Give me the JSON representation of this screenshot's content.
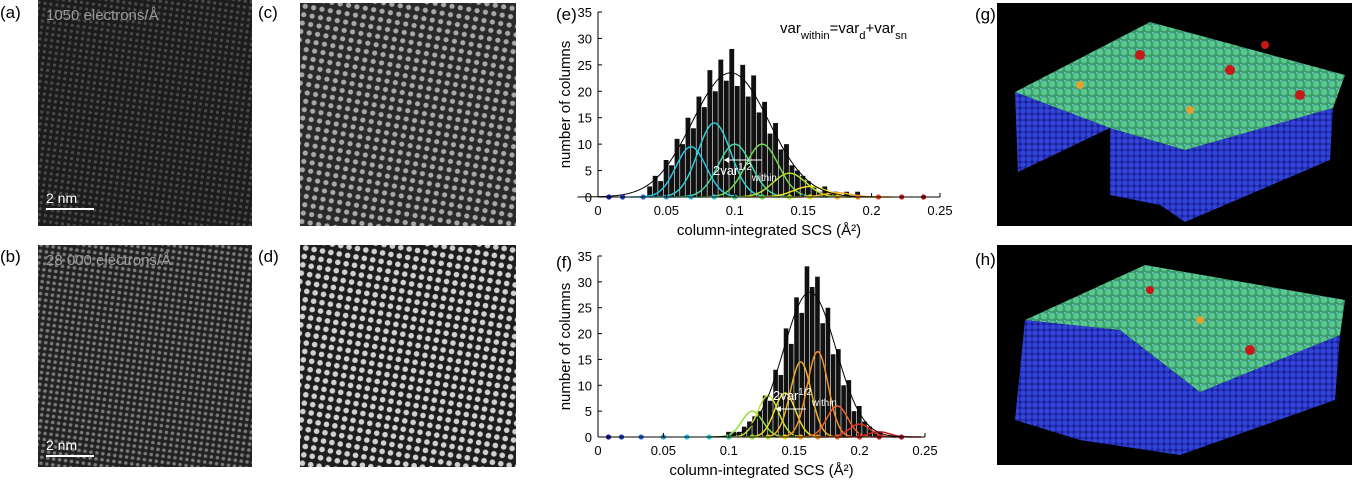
{
  "images": [
    {
      "label": "(a)",
      "caption": "1050 electrons/Å",
      "scale_bar": "2 nm"
    },
    {
      "label": "(b)",
      "caption": "28 000 electrons/Å",
      "scale_bar": "2 nm"
    },
    {
      "label": "(c)"
    },
    {
      "label": "(d)"
    },
    {
      "label": "(g)"
    },
    {
      "label": "(h)"
    }
  ],
  "chart_data": [
    {
      "type": "histogram",
      "label": "(e)",
      "xlabel": "column-integrated SCS (Å²)",
      "ylabel": "number of columns",
      "annotation": [
        "var",
        "within",
        "=var",
        "d",
        "+var",
        "sn"
      ],
      "width_label": [
        "2var",
        "1/2",
        "within"
      ],
      "xlim": [
        0,
        0.25
      ],
      "xticks": [
        0,
        0.05,
        0.1,
        0.15,
        0.2,
        0.25
      ],
      "ylim": [
        0,
        35
      ],
      "yticks": [
        0,
        5,
        10,
        15,
        20,
        25,
        30,
        35
      ],
      "bins": [
        0.036,
        0.04,
        0.044,
        0.048,
        0.052,
        0.056,
        0.06,
        0.064,
        0.068,
        0.072,
        0.076,
        0.08,
        0.084,
        0.088,
        0.092,
        0.096,
        0.1,
        0.104,
        0.108,
        0.112,
        0.116,
        0.12,
        0.124,
        0.128,
        0.132,
        0.136,
        0.14,
        0.144,
        0.148,
        0.152,
        0.156,
        0.16,
        0.164,
        0.168,
        0.172,
        0.176,
        0.18,
        0.184,
        0.188,
        0.192,
        0.196
      ],
      "values": [
        2,
        4,
        3,
        7,
        6,
        11,
        10,
        15,
        13,
        19,
        17,
        24,
        20,
        26,
        22,
        28,
        21,
        25,
        19,
        23,
        16,
        18,
        12,
        14,
        9,
        10,
        6,
        5,
        4,
        3,
        2,
        1,
        2,
        1,
        1,
        0,
        1,
        0,
        1,
        0
      ],
      "bar_color": "#111111",
      "fit": {
        "mean": 0.097,
        "peak": 23.5,
        "sigma": 0.028,
        "color": "#000000"
      },
      "components": [
        {
          "mean": 0.068,
          "peak": 9.5,
          "sigma": 0.011,
          "color": "#22c8e0"
        },
        {
          "mean": 0.085,
          "peak": 14,
          "sigma": 0.012,
          "color": "#30d0d8"
        },
        {
          "mean": 0.1,
          "peak": 10,
          "sigma": 0.012,
          "color": "#40d8a0"
        },
        {
          "mean": 0.12,
          "peak": 10,
          "sigma": 0.012,
          "color": "#70d850"
        },
        {
          "mean": 0.14,
          "peak": 4.5,
          "sigma": 0.012,
          "color": "#b0e030"
        },
        {
          "mean": 0.155,
          "peak": 2,
          "sigma": 0.012,
          "color": "#e8e020"
        },
        {
          "mean": 0.175,
          "peak": 0.8,
          "sigma": 0.01,
          "color": "#f0b020"
        }
      ],
      "markers": [
        {
          "x": 0.008,
          "color": "#1a1aa0"
        },
        {
          "x": 0.018,
          "color": "#1f3fc0"
        },
        {
          "x": 0.033,
          "color": "#2a6ad8"
        },
        {
          "x": 0.05,
          "color": "#2aa0e0"
        },
        {
          "x": 0.068,
          "color": "#22c8e0"
        },
        {
          "x": 0.085,
          "color": "#30d0d8"
        },
        {
          "x": 0.1,
          "color": "#40d8a0"
        },
        {
          "x": 0.12,
          "color": "#70d850"
        },
        {
          "x": 0.14,
          "color": "#b0e030"
        },
        {
          "x": 0.155,
          "color": "#e8e020"
        },
        {
          "x": 0.175,
          "color": "#f0b020"
        },
        {
          "x": 0.19,
          "color": "#f08020"
        },
        {
          "x": 0.205,
          "color": "#e84020"
        },
        {
          "x": 0.222,
          "color": "#d02020"
        },
        {
          "x": 0.238,
          "color": "#a01818"
        }
      ]
    },
    {
      "type": "histogram",
      "label": "(f)",
      "xlabel": "column-integrated SCS (Å²)",
      "ylabel": "number of columns",
      "width_label": [
        "2var",
        "1/2",
        "within"
      ],
      "xlim": [
        0,
        0.25
      ],
      "xticks": [
        0,
        0.05,
        0.1,
        0.15,
        0.2,
        0.25
      ],
      "ylim": [
        0,
        35
      ],
      "yticks": [
        0,
        5,
        10,
        15,
        20,
        25,
        30,
        35
      ],
      "bins": [
        0.09,
        0.094,
        0.098,
        0.102,
        0.106,
        0.11,
        0.114,
        0.118,
        0.122,
        0.126,
        0.13,
        0.134,
        0.138,
        0.142,
        0.146,
        0.15,
        0.154,
        0.158,
        0.162,
        0.166,
        0.17,
        0.174,
        0.178,
        0.182,
        0.186,
        0.19,
        0.194,
        0.198,
        0.202,
        0.206,
        0.21,
        0.214,
        0.218,
        0.222
      ],
      "values": [
        0,
        0,
        1,
        1,
        1,
        2,
        3,
        4,
        5,
        8,
        7,
        13,
        12,
        21,
        18,
        27,
        24,
        33,
        29,
        31,
        22,
        25,
        16,
        17,
        10,
        11,
        5,
        6,
        3,
        2,
        1,
        1,
        0
      ],
      "bar_color": "#111111",
      "fit": {
        "mean": 0.162,
        "peak": 28,
        "sigma": 0.02,
        "color": "#000000"
      },
      "components": [
        {
          "mean": 0.118,
          "peak": 5,
          "sigma": 0.008,
          "color": "#90e040"
        },
        {
          "mean": 0.13,
          "peak": 8,
          "sigma": 0.008,
          "color": "#c0e030"
        },
        {
          "mean": 0.143,
          "peak": 8.5,
          "sigma": 0.008,
          "color": "#e8e020"
        },
        {
          "mean": 0.155,
          "peak": 14.5,
          "sigma": 0.008,
          "color": "#f0b020"
        },
        {
          "mean": 0.168,
          "peak": 16.5,
          "sigma": 0.008,
          "color": "#f09020"
        },
        {
          "mean": 0.183,
          "peak": 6,
          "sigma": 0.008,
          "color": "#f06020"
        },
        {
          "mean": 0.2,
          "peak": 2.5,
          "sigma": 0.008,
          "color": "#e03020"
        },
        {
          "mean": 0.215,
          "peak": 1,
          "sigma": 0.008,
          "color": "#c02020"
        }
      ],
      "markers": [
        {
          "x": 0.008,
          "color": "#1a1aa0"
        },
        {
          "x": 0.018,
          "color": "#1f3fc0"
        },
        {
          "x": 0.033,
          "color": "#2a6ad8"
        },
        {
          "x": 0.05,
          "color": "#2aa0e0"
        },
        {
          "x": 0.068,
          "color": "#22c8e0"
        },
        {
          "x": 0.085,
          "color": "#30d0d8"
        },
        {
          "x": 0.1,
          "color": "#40d8a0"
        },
        {
          "x": 0.118,
          "color": "#90e040"
        },
        {
          "x": 0.13,
          "color": "#c0e030"
        },
        {
          "x": 0.143,
          "color": "#e8e020"
        },
        {
          "x": 0.155,
          "color": "#f0b020"
        },
        {
          "x": 0.168,
          "color": "#f09020"
        },
        {
          "x": 0.183,
          "color": "#f06020"
        },
        {
          "x": 0.2,
          "color": "#e03020"
        },
        {
          "x": 0.215,
          "color": "#c02020"
        },
        {
          "x": 0.232,
          "color": "#a01818"
        }
      ]
    }
  ]
}
